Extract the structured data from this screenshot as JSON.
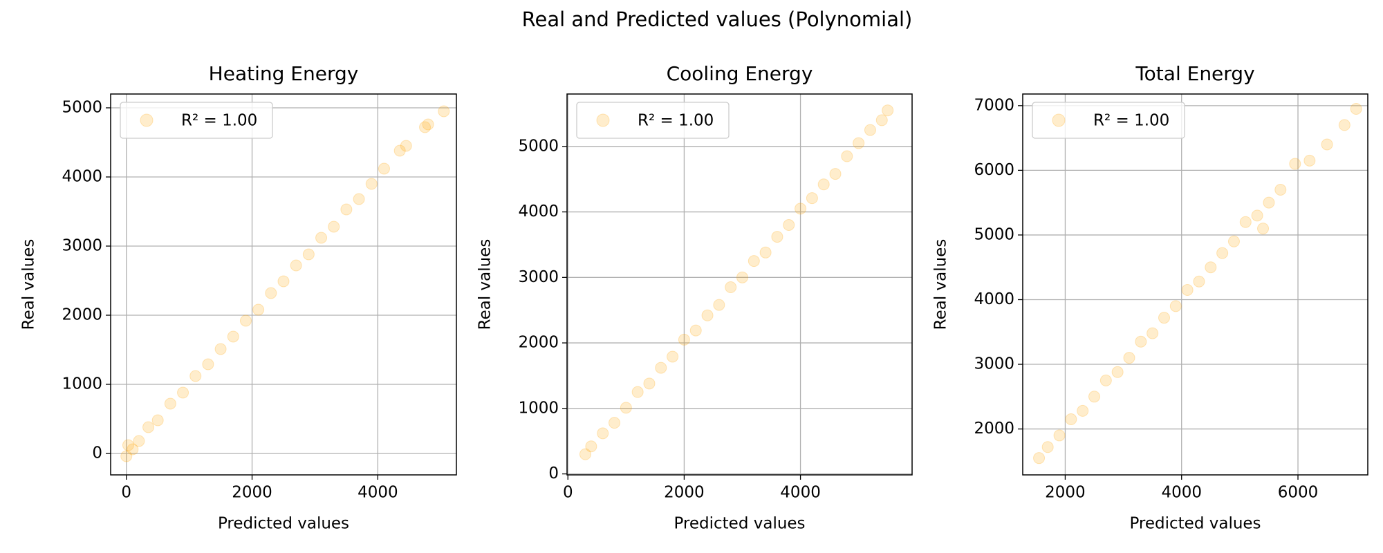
{
  "title": "Real and Predicted values (Polynomial)",
  "chart_data": [
    {
      "type": "scatter",
      "title": "Heating Energy",
      "x_label": "Predicted values",
      "y_label": "Real values",
      "xlim": [
        -250,
        5250
      ],
      "ylim": [
        -310,
        5200
      ],
      "xticks": [
        0,
        2000,
        4000
      ],
      "yticks": [
        0,
        1000,
        2000,
        3000,
        4000,
        5000
      ],
      "grid": true,
      "legend_loc": "upper left",
      "series": [
        {
          "name": "R² =  1.00",
          "color": "#ffa500",
          "x": [
            0,
            30,
            100,
            200,
            350,
            500,
            700,
            900,
            1100,
            1300,
            1500,
            1700,
            1900,
            2100,
            2300,
            2500,
            2700,
            2900,
            3100,
            3300,
            3500,
            3700,
            3900,
            4100,
            4350,
            4450,
            4750,
            4800,
            5050
          ],
          "values": [
            -40,
            120,
            60,
            180,
            380,
            480,
            720,
            880,
            1120,
            1290,
            1510,
            1690,
            1920,
            2080,
            2320,
            2490,
            2720,
            2880,
            3120,
            3280,
            3530,
            3680,
            3900,
            4120,
            4380,
            4450,
            4720,
            4760,
            4950
          ]
        }
      ]
    },
    {
      "type": "scatter",
      "title": "Cooling Energy",
      "x_label": "Predicted values",
      "y_label": "Real values",
      "xlim": [
        -15,
        5920
      ],
      "ylim": [
        -15,
        5800
      ],
      "xticks": [
        0,
        2000,
        4000
      ],
      "yticks": [
        0,
        1000,
        2000,
        3000,
        4000,
        5000
      ],
      "grid": true,
      "legend_loc": "upper left",
      "series": [
        {
          "name": "R² =  1.00",
          "color": "#ffa500",
          "x": [
            300,
            400,
            600,
            800,
            1000,
            1200,
            1400,
            1600,
            1800,
            2000,
            2200,
            2400,
            2600,
            2800,
            3000,
            3200,
            3400,
            3600,
            3800,
            4000,
            4200,
            4400,
            4600,
            4800,
            5000,
            5200,
            5400,
            5500
          ],
          "values": [
            300,
            420,
            620,
            780,
            1010,
            1250,
            1380,
            1620,
            1790,
            2050,
            2190,
            2420,
            2580,
            2850,
            3000,
            3250,
            3380,
            3620,
            3800,
            4050,
            4210,
            4420,
            4580,
            4850,
            5050,
            5250,
            5400,
            5550
          ]
        }
      ]
    },
    {
      "type": "scatter",
      "title": "Total Energy",
      "x_label": "Predicted values",
      "y_label": "Real values",
      "xlim": [
        1270,
        7200
      ],
      "ylim": [
        1290,
        7180
      ],
      "xticks": [
        2000,
        4000,
        6000
      ],
      "yticks": [
        2000,
        3000,
        4000,
        5000,
        6000,
        7000
      ],
      "grid": true,
      "legend_loc": "upper left",
      "series": [
        {
          "name": "R² =  1.00",
          "color": "#ffa500",
          "x": [
            1550,
            1700,
            1900,
            2100,
            2300,
            2500,
            2700,
            2900,
            3100,
            3300,
            3500,
            3700,
            3900,
            4100,
            4300,
            4500,
            4700,
            4900,
            5100,
            5300,
            5400,
            5500,
            5700,
            5950,
            6200,
            6500,
            6800,
            7000
          ],
          "values": [
            1550,
            1720,
            1900,
            2150,
            2280,
            2500,
            2750,
            2880,
            3100,
            3350,
            3480,
            3720,
            3900,
            4150,
            4280,
            4500,
            4720,
            4900,
            5200,
            5300,
            5100,
            5500,
            5700,
            6100,
            6150,
            6400,
            6700,
            6950
          ]
        }
      ]
    }
  ]
}
